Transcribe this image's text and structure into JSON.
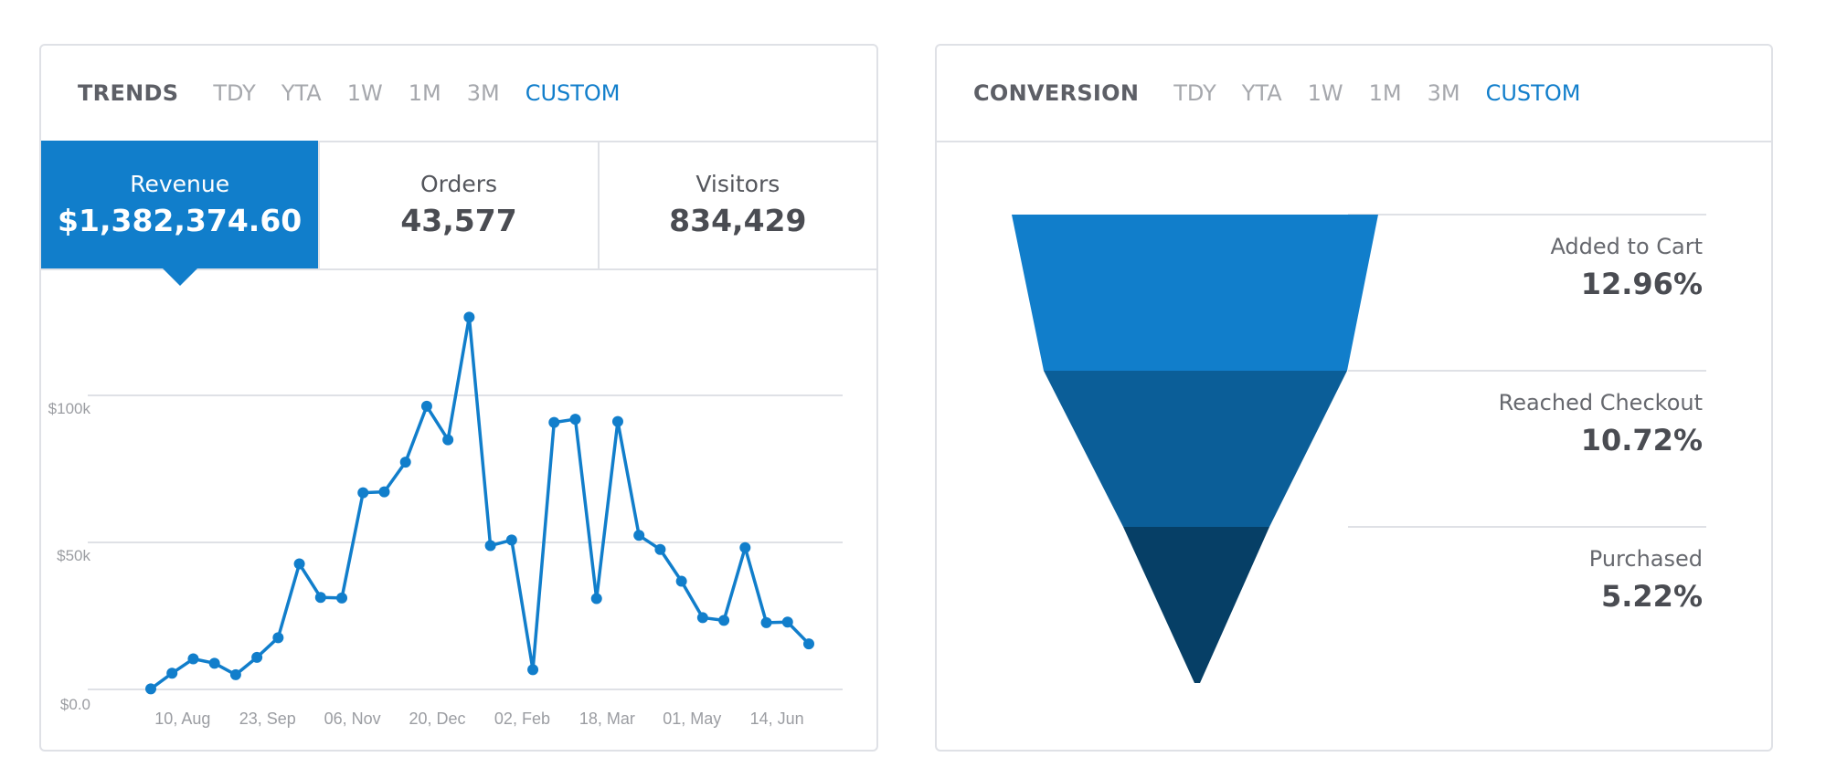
{
  "trends": {
    "title": "TRENDS",
    "tabs": [
      "TDY",
      "YTA",
      "1W",
      "1M",
      "3M",
      "CUSTOM"
    ],
    "active_tab": "CUSTOM",
    "metrics": [
      {
        "label": "Revenue",
        "value": "$1,382,374.60"
      },
      {
        "label": "Orders",
        "value": "43,577"
      },
      {
        "label": "Visitors",
        "value": "834,429"
      }
    ]
  },
  "conversion": {
    "title": "CONVERSION",
    "tabs": [
      "TDY",
      "YTA",
      "1W",
      "1M",
      "3M",
      "CUSTOM"
    ],
    "active_tab": "CUSTOM"
  },
  "colors": {
    "accent": "#117ecb",
    "funnel": [
      "#117ecb",
      "#0b5e98",
      "#063f66"
    ],
    "grid": "#dfe1e6"
  },
  "chart_data": [
    {
      "type": "line",
      "title": "Revenue",
      "ylabel": "",
      "xlabel": "",
      "ylim": [
        0,
        135000
      ],
      "y_ticks": [
        {
          "value": 0,
          "label": "$0.0"
        },
        {
          "value": 50000,
          "label": "$50k"
        },
        {
          "value": 100000,
          "label": "$100k"
        }
      ],
      "x_tick_labels": [
        "10, Aug",
        "23, Sep",
        "06, Nov",
        "20, Dec",
        "02, Feb",
        "18, Mar",
        "01, May",
        "14, Jun"
      ],
      "grid": true,
      "values": [
        200,
        5500,
        10400,
        8900,
        5000,
        10900,
        17600,
        42700,
        31300,
        31100,
        66900,
        67200,
        77300,
        96300,
        84900,
        126600,
        48900,
        50800,
        6700,
        90800,
        91900,
        30900,
        91100,
        52400,
        47600,
        36800,
        24400,
        23500,
        48200,
        22700,
        22900,
        15500
      ]
    },
    {
      "type": "funnel",
      "title": "Conversion",
      "stages": [
        {
          "label": "Added to Cart",
          "value": "12.96%",
          "pct": 12.96
        },
        {
          "label": "Reached Checkout",
          "value": "10.72%",
          "pct": 10.72
        },
        {
          "label": "Purchased",
          "value": "5.22%",
          "pct": 5.22
        }
      ]
    }
  ]
}
